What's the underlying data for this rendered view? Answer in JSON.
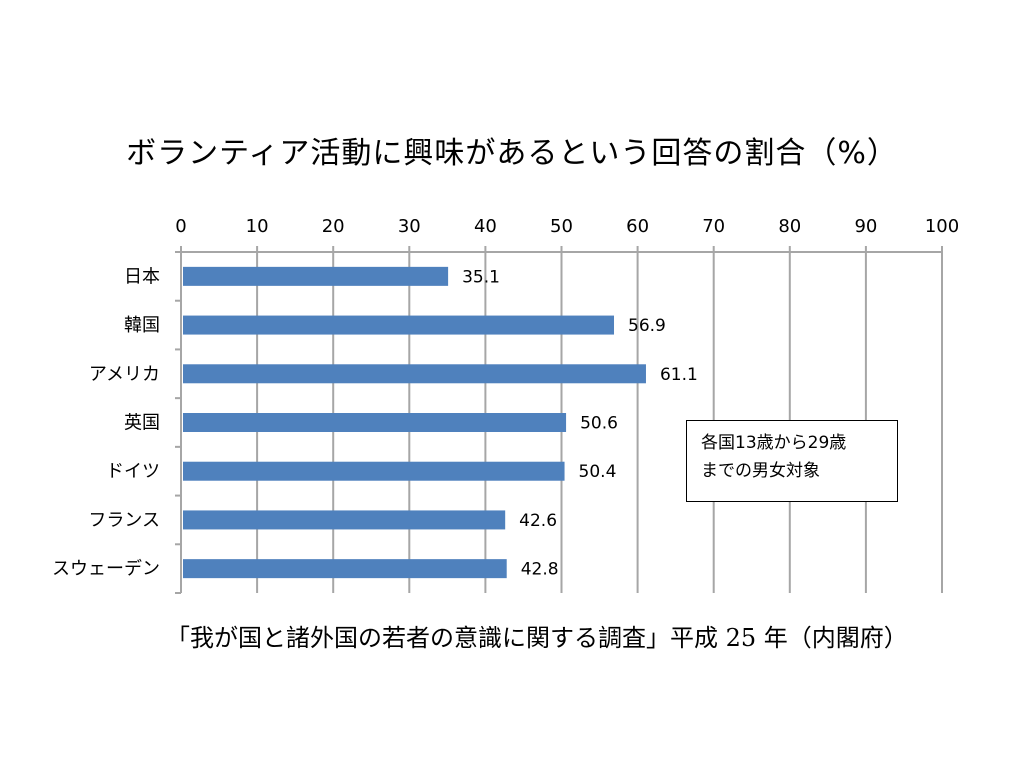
{
  "chart_data": {
    "type": "bar",
    "orientation": "horizontal",
    "title": "ボランティア活動に興味があるという回答の割合（%）",
    "categories": [
      "日本",
      "韓国",
      "アメリカ",
      "英国",
      "ドイツ",
      "フランス",
      "スウェーデン"
    ],
    "values": [
      35.1,
      56.9,
      61.1,
      50.6,
      50.4,
      42.6,
      42.8
    ],
    "data_labels": [
      "35.1",
      "56.9",
      "61.1",
      "50.6",
      "50.4",
      "42.6",
      "42.8"
    ],
    "xlim": [
      0,
      100
    ],
    "x_ticks": [
      0,
      10,
      20,
      30,
      40,
      50,
      60,
      70,
      80,
      90,
      100
    ],
    "x_tick_labels": [
      "0",
      "10",
      "20",
      "30",
      "40",
      "50",
      "60",
      "70",
      "80",
      "90",
      "100"
    ],
    "x_axis_position": "top",
    "grid": true,
    "legend": "none",
    "bar_color": "#4f81bd",
    "gridline_color": "#a6a6a6"
  },
  "note": {
    "line1": "各国13歳から29歳",
    "line2": "までの男女対象"
  },
  "source": "「我が国と諸外国の若者の意識に関する調査」平成 25 年（内閣府）"
}
